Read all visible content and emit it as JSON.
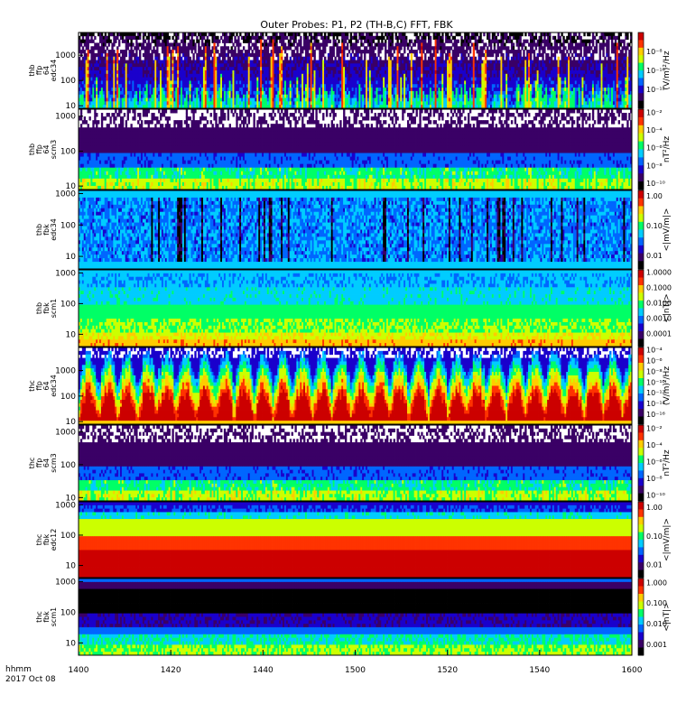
{
  "title": "Outer Probes: P1, P2 (TH-B,C) FFT, FBK",
  "time_label_line1": "hhmm",
  "time_label_line2": "2017 Oct 08",
  "chart_data": {
    "type": "heatmap",
    "x": {
      "ticks": [
        "1400",
        "1420",
        "1440",
        "1500",
        "1520",
        "1540",
        "1600"
      ],
      "range_minutes": [
        0,
        120
      ]
    },
    "panels": [
      {
        "ylabel": [
          "thb",
          "ffp",
          "64",
          "edc34"
        ],
        "yticks": [
          "10",
          "100",
          "1000"
        ],
        "ytick_log_positions": [
          1,
          2,
          3
        ],
        "ylog_range": [
          0.9,
          3.9
        ],
        "cbar_label": "(V/m)²/Hz",
        "cbar_ticks": [
          "10⁻⁸",
          "10⁻¹⁰",
          "10⁻¹²"
        ],
        "cbar_tick_positions": [
          0.75,
          0.5,
          0.25
        ],
        "pattern": "efft_b"
      },
      {
        "ylabel": [
          "thb",
          "ffp",
          "64",
          "scm3"
        ],
        "yticks": [
          "10",
          "100",
          "1000"
        ],
        "ytick_log_positions": [
          1,
          2,
          3
        ],
        "ylog_range": [
          0.9,
          3.2
        ],
        "cbar_label": "nT²/Hz",
        "cbar_ticks": [
          "10⁻²",
          "10⁻⁴",
          "10⁻⁶",
          "10⁻⁸",
          "10⁻¹⁰"
        ],
        "cbar_tick_positions": [
          0.96,
          0.74,
          0.52,
          0.3,
          0.08
        ],
        "pattern": "bfft"
      },
      {
        "ylabel": [
          "thb",
          "fbk",
          "edc34"
        ],
        "yticks": [
          "10",
          "100",
          "1000"
        ],
        "ytick_log_positions": [
          1,
          2,
          3
        ],
        "ylog_range": [
          0.6,
          3.1
        ],
        "cbar_label": "<|mV/m|>",
        "cbar_ticks": [
          "1.00",
          "0.10",
          "0.01"
        ],
        "cbar_tick_positions": [
          0.93,
          0.55,
          0.17
        ],
        "pattern": "efbk_b"
      },
      {
        "ylabel": [
          "thb",
          "fbk",
          "scm1"
        ],
        "yticks": [
          "10",
          "100",
          "1000"
        ],
        "ytick_log_positions": [
          1,
          2,
          3
        ],
        "ylog_range": [
          0.6,
          3.1
        ],
        "cbar_label": "<|nT|>",
        "cbar_ticks": [
          "1.0000",
          "0.1000",
          "0.0100",
          "0.0010",
          "0.0001"
        ],
        "cbar_tick_positions": [
          0.97,
          0.77,
          0.57,
          0.37,
          0.17
        ],
        "pattern": "bfbk_b"
      },
      {
        "ylabel": [
          "thc",
          "ffp",
          "64",
          "edc34"
        ],
        "yticks": [
          "10",
          "100",
          "1000"
        ],
        "ytick_log_positions": [
          1,
          2,
          3
        ],
        "ylog_range": [
          0.9,
          3.9
        ],
        "cbar_label": "(V/m)²/Hz",
        "cbar_ticks": [
          "10⁻⁴",
          "10⁻⁶",
          "10⁻⁸",
          "10⁻¹⁰",
          "10⁻¹²",
          "10⁻¹⁴",
          "10⁻¹⁶"
        ],
        "cbar_tick_positions": [
          0.97,
          0.83,
          0.69,
          0.55,
          0.41,
          0.27,
          0.13
        ],
        "pattern": "efft_c"
      },
      {
        "ylabel": [
          "thc",
          "ffp",
          "64",
          "scm3"
        ],
        "yticks": [
          "10",
          "100",
          "1000"
        ],
        "ytick_log_positions": [
          1,
          2,
          3
        ],
        "ylog_range": [
          0.9,
          3.2
        ],
        "cbar_label": "nT²/Hz",
        "cbar_ticks": [
          "10⁻²",
          "10⁻⁴",
          "10⁻⁶",
          "10⁻⁸",
          "10⁻¹⁰"
        ],
        "cbar_tick_positions": [
          0.96,
          0.74,
          0.52,
          0.3,
          0.08
        ],
        "pattern": "bfft"
      },
      {
        "ylabel": [
          "thc",
          "fbk",
          "edc12"
        ],
        "yticks": [
          "10",
          "100",
          "1000"
        ],
        "ytick_log_positions": [
          1,
          2,
          3
        ],
        "ylog_range": [
          0.6,
          3.1
        ],
        "cbar_label": "<|mV/m|>",
        "cbar_ticks": [
          "1.00",
          "0.10",
          "0.01"
        ],
        "cbar_tick_positions": [
          0.93,
          0.55,
          0.17
        ],
        "pattern": "efbk_c"
      },
      {
        "ylabel": [
          "thc",
          "fbk",
          "scm1"
        ],
        "yticks": [
          "10",
          "100",
          "1000"
        ],
        "ytick_log_positions": [
          1,
          2,
          3
        ],
        "ylog_range": [
          0.6,
          3.1
        ],
        "cbar_label": "<|nT|>",
        "cbar_ticks": [
          "1.000",
          "0.100",
          "0.010",
          "0.001"
        ],
        "cbar_tick_positions": [
          0.95,
          0.68,
          0.41,
          0.14
        ],
        "pattern": "bfbk_c"
      }
    ],
    "colormap": [
      "#000000",
      "#3a0066",
      "#1a00cc",
      "#0066ff",
      "#00ccff",
      "#00ff66",
      "#ccff00",
      "#ffcc00",
      "#ff3300",
      "#cc0000"
    ]
  }
}
